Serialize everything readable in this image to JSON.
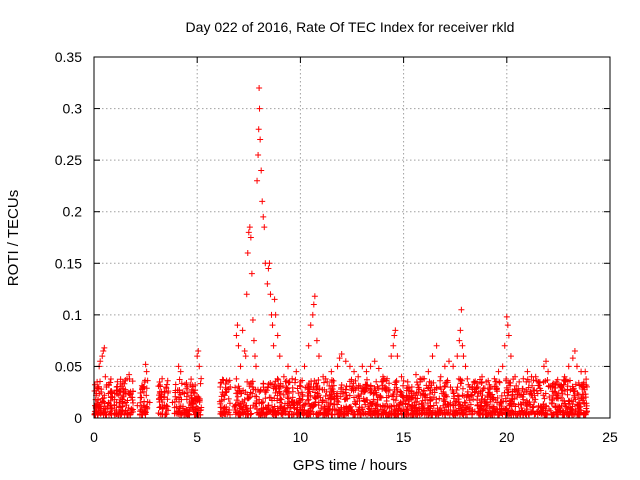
{
  "chart_data": {
    "type": "scatter",
    "title": "Day 022 of 2016, Rate Of TEC Index for receiver rkld",
    "xlabel": "GPS time / hours",
    "ylabel": "ROTI / TECUs",
    "xlim": [
      0,
      25
    ],
    "ylim": [
      0,
      0.35
    ],
    "xticks": [
      0,
      5,
      10,
      15,
      20,
      25
    ],
    "xtick_labels": [
      "0",
      "5",
      "10",
      "15",
      "20",
      "25"
    ],
    "yticks": [
      0,
      0.05,
      0.1,
      0.15,
      0.2,
      0.25,
      0.3,
      0.35
    ],
    "ytick_labels": [
      "0",
      "0.05",
      "0.1",
      "0.15",
      "0.2",
      "0.25",
      "0.3",
      "0.35"
    ],
    "grid": true,
    "marker": "+",
    "color": "#ff0000",
    "series": [
      {
        "name": "ROTI",
        "points": [
          [
            0.05,
            0.012
          ],
          [
            0.1,
            0.022
          ],
          [
            0.15,
            0.035
          ],
          [
            0.2,
            0.018
          ],
          [
            0.25,
            0.05
          ],
          [
            0.3,
            0.055
          ],
          [
            0.35,
            0.028
          ],
          [
            0.4,
            0.06
          ],
          [
            0.45,
            0.065
          ],
          [
            0.5,
            0.068
          ],
          [
            0.55,
            0.04
          ],
          [
            0.6,
            0.03
          ],
          [
            0.7,
            0.015
          ],
          [
            0.8,
            0.025
          ],
          [
            0.9,
            0.02
          ],
          [
            1.0,
            0.018
          ],
          [
            1.1,
            0.03
          ],
          [
            1.2,
            0.022
          ],
          [
            1.3,
            0.028
          ],
          [
            1.4,
            0.035
          ],
          [
            1.5,
            0.026
          ],
          [
            1.6,
            0.038
          ],
          [
            1.7,
            0.042
          ],
          [
            1.8,
            0.02
          ],
          [
            2.1,
            0.012
          ],
          [
            2.3,
            0.02
          ],
          [
            2.4,
            0.03
          ],
          [
            2.5,
            0.052
          ],
          [
            2.55,
            0.045
          ],
          [
            2.7,
            0.015
          ],
          [
            3.2,
            0.032
          ],
          [
            3.3,
            0.038
          ],
          [
            3.4,
            0.02
          ],
          [
            3.6,
            0.026
          ],
          [
            3.8,
            0.015
          ],
          [
            4.1,
            0.05
          ],
          [
            4.2,
            0.045
          ],
          [
            4.3,
            0.025
          ],
          [
            4.5,
            0.018
          ],
          [
            4.7,
            0.022
          ],
          [
            4.9,
            0.032
          ],
          [
            5.0,
            0.06
          ],
          [
            5.05,
            0.065
          ],
          [
            5.1,
            0.05
          ],
          [
            6.2,
            0.01
          ],
          [
            6.3,
            0.018
          ],
          [
            6.4,
            0.025
          ],
          [
            6.5,
            0.035
          ],
          [
            6.6,
            0.03
          ],
          [
            6.9,
            0.08
          ],
          [
            6.95,
            0.09
          ],
          [
            7.0,
            0.07
          ],
          [
            7.1,
            0.05
          ],
          [
            7.2,
            0.085
          ],
          [
            7.3,
            0.065
          ],
          [
            7.35,
            0.06
          ],
          [
            7.4,
            0.12
          ],
          [
            7.45,
            0.16
          ],
          [
            7.5,
            0.18
          ],
          [
            7.55,
            0.185
          ],
          [
            7.6,
            0.175
          ],
          [
            7.65,
            0.14
          ],
          [
            7.7,
            0.095
          ],
          [
            7.75,
            0.075
          ],
          [
            7.8,
            0.06
          ],
          [
            7.85,
            0.05
          ],
          [
            7.9,
            0.23
          ],
          [
            7.95,
            0.255
          ],
          [
            7.98,
            0.28
          ],
          [
            8.0,
            0.32
          ],
          [
            8.02,
            0.3
          ],
          [
            8.05,
            0.27
          ],
          [
            8.1,
            0.24
          ],
          [
            8.15,
            0.21
          ],
          [
            8.2,
            0.195
          ],
          [
            8.25,
            0.185
          ],
          [
            8.3,
            0.15
          ],
          [
            8.4,
            0.13
          ],
          [
            8.45,
            0.145
          ],
          [
            8.5,
            0.15
          ],
          [
            8.55,
            0.12
          ],
          [
            8.6,
            0.1
          ],
          [
            8.65,
            0.09
          ],
          [
            8.7,
            0.07
          ],
          [
            8.75,
            0.115
          ],
          [
            8.8,
            0.1
          ],
          [
            8.9,
            0.08
          ],
          [
            9.0,
            0.06
          ],
          [
            9.2,
            0.04
          ],
          [
            9.4,
            0.05
          ],
          [
            9.6,
            0.038
          ],
          [
            9.8,
            0.045
          ],
          [
            10.0,
            0.035
          ],
          [
            10.2,
            0.05
          ],
          [
            10.4,
            0.07
          ],
          [
            10.5,
            0.09
          ],
          [
            10.6,
            0.1
          ],
          [
            10.65,
            0.11
          ],
          [
            10.7,
            0.118
          ],
          [
            10.8,
            0.075
          ],
          [
            10.9,
            0.06
          ],
          [
            11.1,
            0.04
          ],
          [
            11.3,
            0.035
          ],
          [
            11.5,
            0.045
          ],
          [
            11.8,
            0.05
          ],
          [
            11.9,
            0.058
          ],
          [
            12.0,
            0.062
          ],
          [
            12.2,
            0.055
          ],
          [
            12.4,
            0.05
          ],
          [
            12.6,
            0.045
          ],
          [
            12.8,
            0.04
          ],
          [
            13.0,
            0.05
          ],
          [
            13.2,
            0.045
          ],
          [
            13.4,
            0.05
          ],
          [
            13.6,
            0.055
          ],
          [
            13.8,
            0.048
          ],
          [
            14.0,
            0.04
          ],
          [
            14.2,
            0.038
          ],
          [
            14.4,
            0.06
          ],
          [
            14.5,
            0.07
          ],
          [
            14.55,
            0.08
          ],
          [
            14.6,
            0.085
          ],
          [
            14.7,
            0.06
          ],
          [
            14.9,
            0.04
          ],
          [
            15.2,
            0.035
          ],
          [
            15.4,
            0.03
          ],
          [
            15.6,
            0.042
          ],
          [
            15.8,
            0.035
          ],
          [
            16.0,
            0.038
          ],
          [
            16.2,
            0.045
          ],
          [
            16.4,
            0.06
          ],
          [
            16.6,
            0.07
          ],
          [
            16.8,
            0.04
          ],
          [
            17.0,
            0.05
          ],
          [
            17.2,
            0.055
          ],
          [
            17.4,
            0.05
          ],
          [
            17.6,
            0.06
          ],
          [
            17.7,
            0.075
          ],
          [
            17.75,
            0.085
          ],
          [
            17.8,
            0.105
          ],
          [
            17.85,
            0.07
          ],
          [
            17.9,
            0.06
          ],
          [
            18.0,
            0.05
          ],
          [
            18.2,
            0.03
          ],
          [
            18.4,
            0.035
          ],
          [
            18.6,
            0.03
          ],
          [
            18.8,
            0.04
          ],
          [
            19.0,
            0.035
          ],
          [
            19.2,
            0.03
          ],
          [
            19.4,
            0.038
          ],
          [
            19.6,
            0.045
          ],
          [
            19.8,
            0.05
          ],
          [
            19.9,
            0.07
          ],
          [
            20.0,
            0.098
          ],
          [
            20.05,
            0.09
          ],
          [
            20.1,
            0.08
          ],
          [
            20.2,
            0.06
          ],
          [
            20.4,
            0.04
          ],
          [
            20.6,
            0.035
          ],
          [
            20.8,
            0.038
          ],
          [
            21.0,
            0.045
          ],
          [
            21.2,
            0.04
          ],
          [
            21.4,
            0.04
          ],
          [
            21.6,
            0.035
          ],
          [
            21.8,
            0.05
          ],
          [
            21.9,
            0.055
          ],
          [
            22.0,
            0.045
          ],
          [
            22.2,
            0.03
          ],
          [
            22.4,
            0.035
          ],
          [
            22.6,
            0.03
          ],
          [
            22.8,
            0.04
          ],
          [
            23.0,
            0.05
          ],
          [
            23.2,
            0.058
          ],
          [
            23.3,
            0.065
          ],
          [
            23.4,
            0.05
          ],
          [
            23.6,
            0.045
          ],
          [
            23.8,
            0.045
          ]
        ]
      }
    ],
    "dense_segments_hours": [
      [
        0.0,
        1.9
      ],
      [
        2.2,
        2.6
      ],
      [
        3.1,
        3.6
      ],
      [
        3.9,
        5.2
      ],
      [
        6.1,
        6.6
      ],
      [
        6.8,
        23.9
      ]
    ],
    "baseline_range": [
      0.003,
      0.035
    ]
  }
}
